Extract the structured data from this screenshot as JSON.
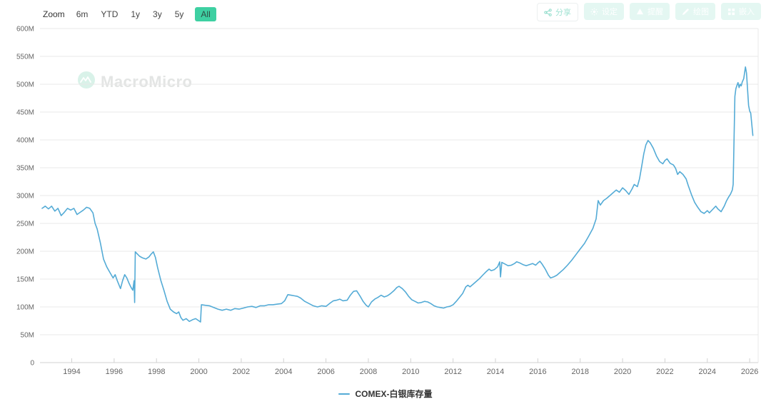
{
  "toolbar": {
    "zoom_label": "Zoom",
    "ranges": [
      "6m",
      "YTD",
      "1y",
      "3y",
      "5y",
      "All"
    ],
    "active_range": "All",
    "actions": [
      {
        "label": "分享",
        "icon": "share-icon"
      },
      {
        "label": "设定",
        "icon": "gear-icon"
      },
      {
        "label": "提醒",
        "icon": "alert-icon"
      },
      {
        "label": "绘图",
        "icon": "pencil-icon"
      },
      {
        "label": "嵌入",
        "icon": "embed-icon"
      }
    ]
  },
  "watermark": {
    "text": "MacroMicro"
  },
  "legend": {
    "series_label": "COMEX-白银库存量",
    "marker_color": "#54abd6"
  },
  "colors": {
    "line": "#54abd6",
    "accent_green": "#3ed0a2",
    "grid": "#e8e8e8",
    "axis": "#d2d2d2",
    "tick_text": "#666"
  },
  "chart_data": {
    "type": "line",
    "title": "",
    "xlabel": "",
    "ylabel": "",
    "unit": "M",
    "grid": "horizontal",
    "legend_position": "bottom",
    "xlim": [
      1992.5,
      2026.4
    ],
    "ylim": [
      0,
      600
    ],
    "x_ticks": [
      1994,
      1996,
      1998,
      2000,
      2002,
      2004,
      2006,
      2008,
      2010,
      2012,
      2014,
      2016,
      2018,
      2020,
      2022,
      2024,
      2026
    ],
    "y_ticks": [
      0,
      50,
      100,
      150,
      200,
      250,
      300,
      350,
      400,
      450,
      500,
      550,
      600
    ],
    "y_tick_suffix": "M",
    "series": [
      {
        "name": "COMEX-白银库存量",
        "color": "#54abd6",
        "points": [
          [
            1992.6,
            277
          ],
          [
            1992.75,
            281
          ],
          [
            1992.9,
            276
          ],
          [
            1993.05,
            281
          ],
          [
            1993.2,
            272
          ],
          [
            1993.35,
            277
          ],
          [
            1993.5,
            264
          ],
          [
            1993.65,
            270
          ],
          [
            1993.8,
            277
          ],
          [
            1993.95,
            274
          ],
          [
            1994.1,
            277
          ],
          [
            1994.25,
            266
          ],
          [
            1994.4,
            270
          ],
          [
            1994.55,
            274
          ],
          [
            1994.7,
            279
          ],
          [
            1994.85,
            277
          ],
          [
            1995.0,
            269
          ],
          [
            1995.1,
            250
          ],
          [
            1995.2,
            240
          ],
          [
            1995.35,
            215
          ],
          [
            1995.5,
            186
          ],
          [
            1995.65,
            172
          ],
          [
            1995.8,
            162
          ],
          [
            1995.95,
            152
          ],
          [
            1996.05,
            158
          ],
          [
            1996.15,
            147
          ],
          [
            1996.3,
            133
          ],
          [
            1996.4,
            147
          ],
          [
            1996.5,
            158
          ],
          [
            1996.6,
            152
          ],
          [
            1996.7,
            143
          ],
          [
            1996.8,
            135
          ],
          [
            1996.88,
            130
          ],
          [
            1996.94,
            147
          ],
          [
            1996.97,
            108
          ],
          [
            1997.0,
            199
          ],
          [
            1997.1,
            195
          ],
          [
            1997.2,
            191
          ],
          [
            1997.35,
            188
          ],
          [
            1997.5,
            186
          ],
          [
            1997.65,
            190
          ],
          [
            1997.75,
            195
          ],
          [
            1997.85,
            199
          ],
          [
            1997.95,
            189
          ],
          [
            1998.05,
            171
          ],
          [
            1998.2,
            148
          ],
          [
            1998.35,
            130
          ],
          [
            1998.5,
            110
          ],
          [
            1998.65,
            96
          ],
          [
            1998.8,
            91
          ],
          [
            1998.95,
            88
          ],
          [
            1999.05,
            91
          ],
          [
            1999.15,
            81
          ],
          [
            1999.25,
            76
          ],
          [
            1999.4,
            79
          ],
          [
            1999.55,
            74
          ],
          [
            1999.7,
            77
          ],
          [
            1999.85,
            79
          ],
          [
            2000.0,
            75
          ],
          [
            2000.08,
            73
          ],
          [
            2000.12,
            104
          ],
          [
            2000.3,
            103
          ],
          [
            2000.5,
            102
          ],
          [
            2000.7,
            99
          ],
          [
            2000.9,
            96
          ],
          [
            2001.1,
            94
          ],
          [
            2001.3,
            96
          ],
          [
            2001.5,
            94
          ],
          [
            2001.7,
            97
          ],
          [
            2001.9,
            96
          ],
          [
            2002.1,
            98
          ],
          [
            2002.3,
            100
          ],
          [
            2002.5,
            101
          ],
          [
            2002.7,
            99
          ],
          [
            2002.9,
            102
          ],
          [
            2003.1,
            102
          ],
          [
            2003.3,
            104
          ],
          [
            2003.5,
            104
          ],
          [
            2003.7,
            105
          ],
          [
            2003.9,
            106
          ],
          [
            2004.05,
            111
          ],
          [
            2004.2,
            122
          ],
          [
            2004.35,
            121
          ],
          [
            2004.5,
            120
          ],
          [
            2004.65,
            119
          ],
          [
            2004.8,
            116
          ],
          [
            2005.0,
            110
          ],
          [
            2005.2,
            106
          ],
          [
            2005.4,
            102
          ],
          [
            2005.6,
            100
          ],
          [
            2005.8,
            102
          ],
          [
            2006.0,
            101
          ],
          [
            2006.2,
            107
          ],
          [
            2006.35,
            111
          ],
          [
            2006.5,
            112
          ],
          [
            2006.65,
            114
          ],
          [
            2006.8,
            111
          ],
          [
            2007.0,
            112
          ],
          [
            2007.15,
            121
          ],
          [
            2007.3,
            128
          ],
          [
            2007.45,
            129
          ],
          [
            2007.6,
            120
          ],
          [
            2007.75,
            110
          ],
          [
            2007.9,
            103
          ],
          [
            2008.0,
            100
          ],
          [
            2008.15,
            109
          ],
          [
            2008.3,
            114
          ],
          [
            2008.45,
            117
          ],
          [
            2008.6,
            121
          ],
          [
            2008.75,
            118
          ],
          [
            2008.9,
            120
          ],
          [
            2009.05,
            124
          ],
          [
            2009.2,
            129
          ],
          [
            2009.35,
            135
          ],
          [
            2009.45,
            137
          ],
          [
            2009.6,
            133
          ],
          [
            2009.75,
            127
          ],
          [
            2009.9,
            119
          ],
          [
            2010.05,
            113
          ],
          [
            2010.2,
            110
          ],
          [
            2010.35,
            107
          ],
          [
            2010.5,
            108
          ],
          [
            2010.65,
            110
          ],
          [
            2010.8,
            109
          ],
          [
            2010.95,
            106
          ],
          [
            2011.1,
            102
          ],
          [
            2011.25,
            100
          ],
          [
            2011.4,
            99
          ],
          [
            2011.55,
            98
          ],
          [
            2011.7,
            100
          ],
          [
            2011.85,
            101
          ],
          [
            2012.0,
            104
          ],
          [
            2012.15,
            110
          ],
          [
            2012.3,
            117
          ],
          [
            2012.45,
            124
          ],
          [
            2012.6,
            136
          ],
          [
            2012.7,
            139
          ],
          [
            2012.8,
            136
          ],
          [
            2012.95,
            141
          ],
          [
            2013.1,
            146
          ],
          [
            2013.25,
            151
          ],
          [
            2013.4,
            157
          ],
          [
            2013.55,
            163
          ],
          [
            2013.7,
            168
          ],
          [
            2013.8,
            165
          ],
          [
            2013.95,
            167
          ],
          [
            2014.1,
            172
          ],
          [
            2014.2,
            181
          ],
          [
            2014.24,
            154
          ],
          [
            2014.3,
            180
          ],
          [
            2014.45,
            177
          ],
          [
            2014.6,
            174
          ],
          [
            2014.75,
            175
          ],
          [
            2014.9,
            178
          ],
          [
            2015.0,
            181
          ],
          [
            2015.15,
            179
          ],
          [
            2015.3,
            176
          ],
          [
            2015.45,
            174
          ],
          [
            2015.6,
            176
          ],
          [
            2015.75,
            178
          ],
          [
            2015.9,
            175
          ],
          [
            2016.0,
            179
          ],
          [
            2016.1,
            182
          ],
          [
            2016.2,
            177
          ],
          [
            2016.35,
            168
          ],
          [
            2016.5,
            157
          ],
          [
            2016.6,
            152
          ],
          [
            2016.75,
            154
          ],
          [
            2016.9,
            157
          ],
          [
            2017.05,
            162
          ],
          [
            2017.2,
            167
          ],
          [
            2017.4,
            175
          ],
          [
            2017.6,
            184
          ],
          [
            2017.8,
            194
          ],
          [
            2018.0,
            204
          ],
          [
            2018.2,
            214
          ],
          [
            2018.4,
            227
          ],
          [
            2018.6,
            241
          ],
          [
            2018.75,
            258
          ],
          [
            2018.85,
            291
          ],
          [
            2018.95,
            283
          ],
          [
            2019.1,
            291
          ],
          [
            2019.25,
            295
          ],
          [
            2019.4,
            300
          ],
          [
            2019.55,
            305
          ],
          [
            2019.7,
            310
          ],
          [
            2019.85,
            306
          ],
          [
            2020.0,
            314
          ],
          [
            2020.15,
            309
          ],
          [
            2020.3,
            302
          ],
          [
            2020.45,
            312
          ],
          [
            2020.55,
            320
          ],
          [
            2020.7,
            316
          ],
          [
            2020.8,
            330
          ],
          [
            2020.9,
            352
          ],
          [
            2021.0,
            375
          ],
          [
            2021.1,
            391
          ],
          [
            2021.2,
            399
          ],
          [
            2021.3,
            395
          ],
          [
            2021.45,
            385
          ],
          [
            2021.6,
            371
          ],
          [
            2021.75,
            361
          ],
          [
            2021.9,
            357
          ],
          [
            2022.0,
            363
          ],
          [
            2022.1,
            366
          ],
          [
            2022.25,
            358
          ],
          [
            2022.4,
            355
          ],
          [
            2022.5,
            349
          ],
          [
            2022.6,
            338
          ],
          [
            2022.7,
            343
          ],
          [
            2022.85,
            338
          ],
          [
            2023.0,
            330
          ],
          [
            2023.1,
            318
          ],
          [
            2023.25,
            302
          ],
          [
            2023.4,
            288
          ],
          [
            2023.55,
            279
          ],
          [
            2023.7,
            271
          ],
          [
            2023.85,
            268
          ],
          [
            2024.0,
            273
          ],
          [
            2024.1,
            269
          ],
          [
            2024.25,
            275
          ],
          [
            2024.4,
            281
          ],
          [
            2024.5,
            276
          ],
          [
            2024.65,
            271
          ],
          [
            2024.8,
            281
          ],
          [
            2024.9,
            290
          ],
          [
            2025.0,
            297
          ],
          [
            2025.1,
            303
          ],
          [
            2025.18,
            310
          ],
          [
            2025.22,
            320
          ],
          [
            2025.3,
            478
          ],
          [
            2025.35,
            492
          ],
          [
            2025.4,
            498
          ],
          [
            2025.45,
            503
          ],
          [
            2025.5,
            494
          ],
          [
            2025.55,
            500
          ],
          [
            2025.6,
            497
          ],
          [
            2025.65,
            504
          ],
          [
            2025.72,
            510
          ],
          [
            2025.8,
            531
          ],
          [
            2025.85,
            520
          ],
          [
            2025.9,
            490
          ],
          [
            2025.95,
            462
          ],
          [
            2026.0,
            452
          ],
          [
            2026.05,
            448
          ],
          [
            2026.1,
            428
          ],
          [
            2026.15,
            408
          ]
        ]
      }
    ]
  }
}
